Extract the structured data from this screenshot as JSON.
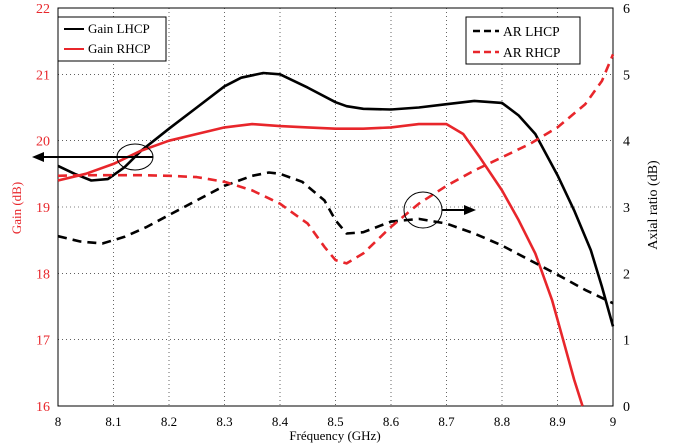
{
  "chart_data": {
    "type": "line",
    "xlabel": "Fréquency (GHz)",
    "ylabel_left": "Gain (dB)",
    "ylabel_right": "Axial ratio (dB)",
    "xlim": [
      8,
      9
    ],
    "ylim_left": [
      16,
      22
    ],
    "ylim_right": [
      0,
      6
    ],
    "x_ticks": [
      "8",
      "8.1",
      "8.2",
      "8.3",
      "8.4",
      "8.5",
      "8.6",
      "8.7",
      "8.8",
      "8.9",
      "9"
    ],
    "y_ticks_left": [
      "16",
      "17",
      "18",
      "19",
      "20",
      "21",
      "22"
    ],
    "y_ticks_right": [
      "0",
      "1",
      "2",
      "3",
      "4",
      "5",
      "6"
    ],
    "grid": true,
    "colors": {
      "left_axis": "#e8262b",
      "lhcp": "#000000",
      "rhcp": "#e8262b"
    },
    "series": [
      {
        "name": "Gain LHCP",
        "axis": "left",
        "style": "solid",
        "color": "#000000",
        "x": [
          8,
          8.03,
          8.06,
          8.09,
          8.12,
          8.15,
          8.2,
          8.25,
          8.3,
          8.33,
          8.37,
          8.4,
          8.45,
          8.5,
          8.52,
          8.55,
          8.6,
          8.65,
          8.7,
          8.75,
          8.8,
          8.83,
          8.86,
          8.9,
          8.93,
          8.96,
          8.98,
          9
        ],
        "y": [
          19.62,
          19.5,
          19.4,
          19.42,
          19.6,
          19.85,
          20.18,
          20.5,
          20.82,
          20.95,
          21.02,
          21.0,
          20.8,
          20.58,
          20.52,
          20.48,
          20.47,
          20.5,
          20.55,
          20.6,
          20.57,
          20.38,
          20.1,
          19.48,
          18.95,
          18.35,
          17.8,
          17.2
        ]
      },
      {
        "name": "Gain RHCP",
        "axis": "left",
        "style": "solid",
        "color": "#e8262b",
        "x": [
          8,
          8.05,
          8.1,
          8.15,
          8.2,
          8.25,
          8.3,
          8.35,
          8.4,
          8.45,
          8.5,
          8.55,
          8.6,
          8.65,
          8.7,
          8.73,
          8.76,
          8.8,
          8.83,
          8.86,
          8.89,
          8.91,
          8.93,
          8.945
        ],
        "y": [
          19.4,
          19.5,
          19.65,
          19.85,
          20.0,
          20.1,
          20.2,
          20.25,
          20.22,
          20.2,
          20.18,
          20.18,
          20.2,
          20.25,
          20.25,
          20.1,
          19.75,
          19.25,
          18.8,
          18.3,
          17.6,
          17.0,
          16.4,
          16.0
        ]
      },
      {
        "name": "AR LHCP",
        "axis": "right",
        "style": "dashed",
        "color": "#000000",
        "x": [
          8,
          8.04,
          8.08,
          8.12,
          8.16,
          8.2,
          8.25,
          8.3,
          8.35,
          8.38,
          8.4,
          8.44,
          8.48,
          8.5,
          8.52,
          8.55,
          8.6,
          8.65,
          8.7,
          8.75,
          8.8,
          8.85,
          8.9,
          8.95,
          9
        ],
        "y": [
          2.56,
          2.48,
          2.45,
          2.55,
          2.7,
          2.88,
          3.1,
          3.32,
          3.47,
          3.52,
          3.5,
          3.38,
          3.1,
          2.8,
          2.6,
          2.62,
          2.78,
          2.82,
          2.75,
          2.6,
          2.42,
          2.2,
          1.98,
          1.75,
          1.55
        ]
      },
      {
        "name": "AR RHCP",
        "axis": "right",
        "style": "dashed",
        "color": "#e8262b",
        "x": [
          8,
          8.05,
          8.1,
          8.15,
          8.2,
          8.25,
          8.3,
          8.35,
          8.4,
          8.45,
          8.48,
          8.5,
          8.52,
          8.55,
          8.6,
          8.65,
          8.7,
          8.75,
          8.8,
          8.85,
          8.9,
          8.95,
          8.98,
          9
        ],
        "y": [
          3.47,
          3.48,
          3.48,
          3.48,
          3.47,
          3.45,
          3.38,
          3.25,
          3.05,
          2.75,
          2.4,
          2.2,
          2.15,
          2.3,
          2.7,
          3.05,
          3.32,
          3.55,
          3.75,
          3.95,
          4.2,
          4.55,
          4.9,
          5.3
        ]
      }
    ],
    "legends": [
      {
        "position": "top-left",
        "entries": [
          "Gain LHCP",
          "Gain RHCP"
        ]
      },
      {
        "position": "top-right",
        "entries": [
          "AR LHCP",
          "AR RHCP"
        ]
      }
    ],
    "annotations": [
      {
        "shape": "ellipse with arrow",
        "points_to": "left axis",
        "near_x": 8.14
      },
      {
        "shape": "ellipse with arrow",
        "points_to": "right axis",
        "near_x": 8.65
      }
    ]
  }
}
